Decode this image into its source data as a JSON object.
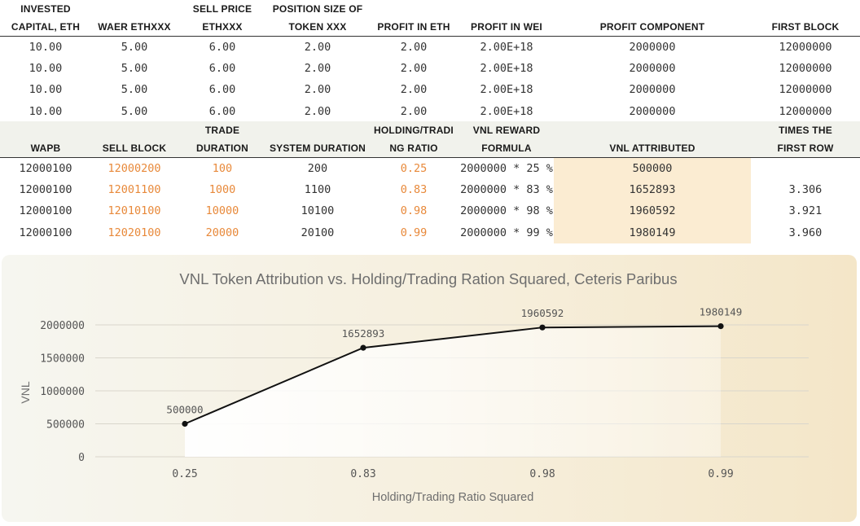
{
  "table1": {
    "headers": [
      [
        "INVESTED",
        "CAPITAL, ETH"
      ],
      [
        "",
        "WAER ETHXXX"
      ],
      [
        "SELL PRICE",
        "ETHXXX"
      ],
      [
        "POSITION SIZE OF",
        "TOKEN XXX"
      ],
      [
        "",
        "PROFIT IN ETH"
      ],
      [
        "",
        "PROFIT IN WEI"
      ],
      [
        "",
        "PROFIT COMPONENT"
      ],
      [
        "",
        "FIRST BLOCK"
      ]
    ],
    "rows": [
      [
        "10.00",
        "5.00",
        "6.00",
        "2.00",
        "2.00",
        "2.00E+18",
        "2000000",
        "12000000"
      ],
      [
        "10.00",
        "5.00",
        "6.00",
        "2.00",
        "2.00",
        "2.00E+18",
        "2000000",
        "12000000"
      ],
      [
        "10.00",
        "5.00",
        "6.00",
        "2.00",
        "2.00",
        "2.00E+18",
        "2000000",
        "12000000"
      ],
      [
        "10.00",
        "5.00",
        "6.00",
        "2.00",
        "2.00",
        "2.00E+18",
        "2000000",
        "12000000"
      ]
    ]
  },
  "table2": {
    "headers": [
      [
        "",
        "WAPB"
      ],
      [
        "",
        "SELL BLOCK"
      ],
      [
        "TRADE",
        "DURATION"
      ],
      [
        "",
        "SYSTEM DURATION"
      ],
      [
        "HOLDING/TRADI",
        "NG RATIO"
      ],
      [
        "VNL REWARD",
        "FORMULA"
      ],
      [
        "",
        "VNL ATTRIBUTED"
      ],
      [
        "TIMES THE",
        "FIRST ROW"
      ]
    ],
    "rows": [
      [
        "12000100",
        "12000200",
        "100",
        "200",
        "0.25",
        "2000000 * 25 %",
        "500000",
        ""
      ],
      [
        "12000100",
        "12001100",
        "1000",
        "1100",
        "0.83",
        "2000000 * 83 %",
        "1652893",
        "3.306"
      ],
      [
        "12000100",
        "12010100",
        "10000",
        "10100",
        "0.98",
        "2000000 * 98 %",
        "1960592",
        "3.921"
      ],
      [
        "12000100",
        "12020100",
        "20000",
        "20100",
        "0.99",
        "2000000 * 99 %",
        "1980149",
        "3.960"
      ]
    ]
  },
  "colors": {
    "orange_text": "#e8893a",
    "highlight": "#fbecd2",
    "line": "#111111"
  },
  "chart_data": {
    "type": "line",
    "title": "VNL Token Attribution vs. Holding/Trading Ration Squared, Ceteris Paribus",
    "xlabel": "Holding/Trading Ratio Squared",
    "ylabel": "VNL",
    "categories": [
      "0.25",
      "0.83",
      "0.98",
      "0.99"
    ],
    "values": [
      500000,
      1652893,
      1960592,
      1980149
    ],
    "data_labels": [
      "500000",
      "1652893",
      "1960592",
      "1980149"
    ],
    "y_ticks": [
      "0",
      "500000",
      "1000000",
      "1500000",
      "2000000"
    ],
    "ylim": [
      0,
      2000000
    ],
    "grid": true,
    "area_fill": true
  }
}
